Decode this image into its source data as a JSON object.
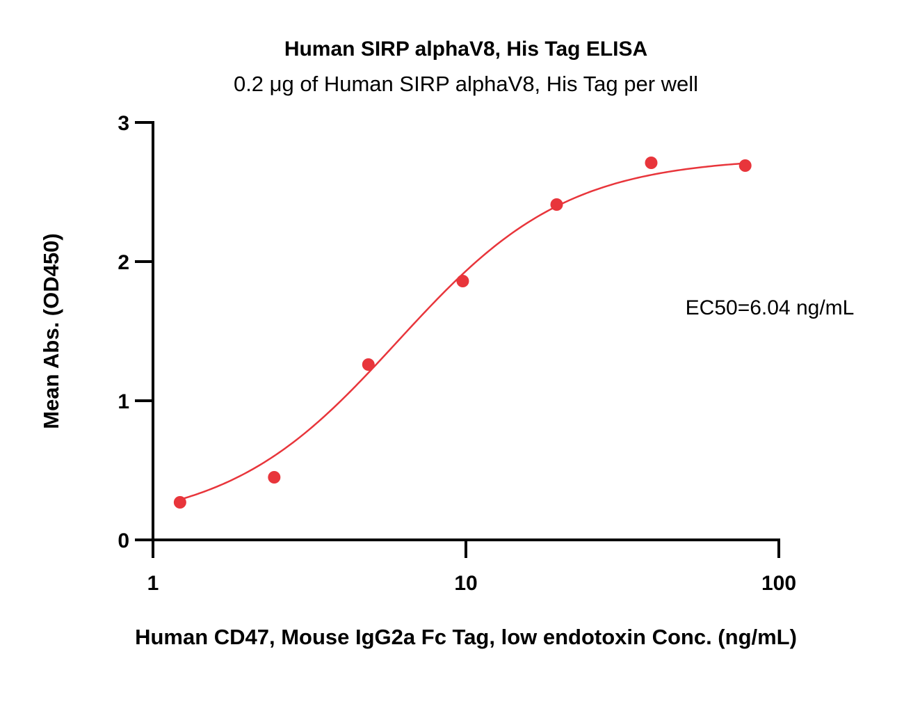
{
  "chart_data": {
    "type": "scatter",
    "title": "Human SIRP alphaV8, His Tag ELISA",
    "subtitle": "0.2 μg of Human SIRP alphaV8, His Tag per well",
    "xlabel": "Human CD47, Mouse IgG2a Fc Tag, low endotoxin Conc. (ng/mL)",
    "ylabel": "Mean Abs. (OD450)",
    "x_scale": "log",
    "xlim": [
      1,
      100
    ],
    "ylim": [
      0,
      3
    ],
    "x_ticks": [
      "1",
      "10",
      "100"
    ],
    "y_ticks": [
      "0",
      "1",
      "2",
      "3"
    ],
    "grid": false,
    "series": [
      {
        "color": "#e8353b",
        "points": [
          {
            "x": 1.22,
            "y": 0.27
          },
          {
            "x": 2.44,
            "y": 0.45
          },
          {
            "x": 4.88,
            "y": 1.26
          },
          {
            "x": 9.77,
            "y": 1.86
          },
          {
            "x": 19.5,
            "y": 2.41
          },
          {
            "x": 39.1,
            "y": 2.71
          },
          {
            "x": 78.1,
            "y": 2.69
          }
        ],
        "fit": {
          "model": "4PL",
          "bottom": 0.1,
          "top": 2.75,
          "ec50": 6.04,
          "hill": 1.6
        }
      }
    ],
    "annotations": [
      {
        "text": "EC50=6.04 ng/mL"
      }
    ]
  }
}
